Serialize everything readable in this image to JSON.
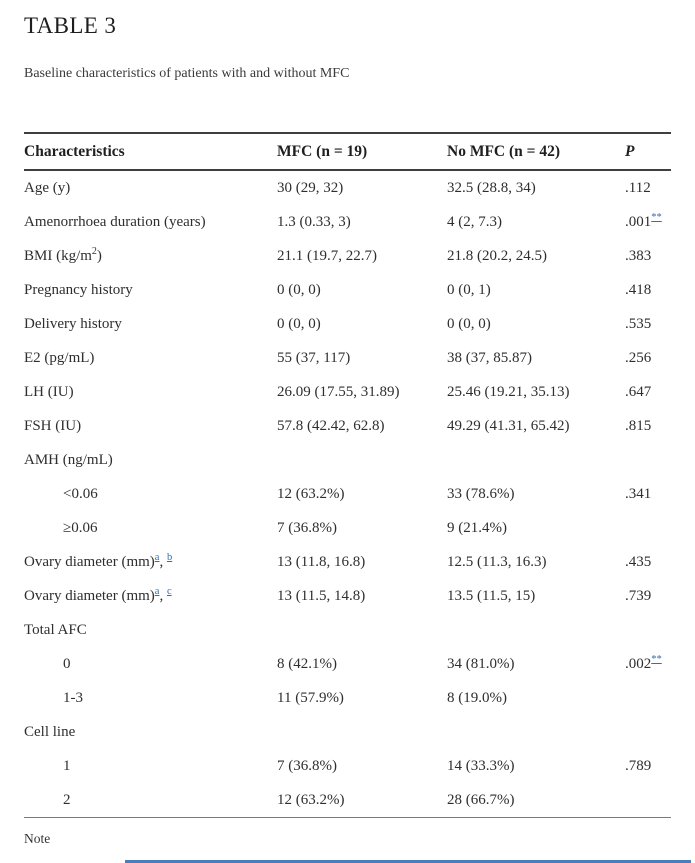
{
  "page": {
    "title": "TABLE 3",
    "caption": "Baseline characteristics of patients with and without MFC",
    "note_label": "Note"
  },
  "colors": {
    "link_blue": "#2f6eb2",
    "divider_blue": "#4a7ebb"
  },
  "table": {
    "columns": [
      "Characteristics",
      "MFC (n = 19)",
      "No MFC (n = 42)",
      "P"
    ],
    "rows": [
      {
        "label": "Age (y)",
        "mfc": "30 (29, 32)",
        "no_mfc": "32.5 (28.8, 34)",
        "p": ".112"
      },
      {
        "label": "Amenorrhoea duration (years)",
        "mfc": "1.3 (0.33, 3)",
        "no_mfc": "4 (2, 7.3)",
        "p": ".001",
        "p_sup": "**"
      },
      {
        "label": "BMI (kg/m",
        "label_sup_plain": "2",
        "label_end": ")",
        "mfc": "21.1 (19.7, 22.7)",
        "no_mfc": "21.8 (20.2, 24.5)",
        "p": ".383"
      },
      {
        "label": "Pregnancy history",
        "mfc": "0 (0, 0)",
        "no_mfc": "0 (0, 1)",
        "p": ".418"
      },
      {
        "label": "Delivery history",
        "mfc": "0 (0, 0)",
        "no_mfc": "0 (0, 0)",
        "p": ".535"
      },
      {
        "label": "E2 (pg/mL)",
        "mfc": "55 (37, 117)",
        "no_mfc": "38 (37, 85.87)",
        "p": ".256"
      },
      {
        "label": "LH (IU)",
        "mfc": "26.09 (17.55, 31.89)",
        "no_mfc": "25.46 (19.21, 35.13)",
        "p": ".647"
      },
      {
        "label": "FSH (IU)",
        "mfc": "57.8 (42.42, 62.8)",
        "no_mfc": "49.29 (41.31, 65.42)",
        "p": ".815"
      },
      {
        "label": "AMH (ng/mL)"
      },
      {
        "label": "<0.06",
        "indent": true,
        "mfc": "12 (63.2%)",
        "no_mfc": "33 (78.6%)",
        "p": ".341"
      },
      {
        "label": "≥0.06",
        "indent": true,
        "mfc": "7 (36.8%)",
        "no_mfc": "9 (21.4%)"
      },
      {
        "label": "Ovary diameter (mm)",
        "label_sup_links": [
          "a",
          "b"
        ],
        "mfc": "13 (11.8, 16.8)",
        "no_mfc": "12.5 (11.3, 16.3)",
        "p": ".435"
      },
      {
        "label": "Ovary diameter (mm)",
        "label_sup_links": [
          "a",
          "c"
        ],
        "mfc": "13 (11.5, 14.8)",
        "no_mfc": "13.5 (11.5, 15)",
        "p": ".739"
      },
      {
        "label": "Total AFC"
      },
      {
        "label": "0",
        "indent": true,
        "mfc": "8 (42.1%)",
        "no_mfc": "34 (81.0%)",
        "p": ".002",
        "p_sup": "**"
      },
      {
        "label": "1-3",
        "indent": true,
        "mfc": "11 (57.9%)",
        "no_mfc": "8 (19.0%)"
      },
      {
        "label": "Cell line"
      },
      {
        "label": "1",
        "indent": true,
        "mfc": "7 (36.8%)",
        "no_mfc": "14 (33.3%)",
        "p": ".789"
      },
      {
        "label": "2",
        "indent": true,
        "mfc": "12 (63.2%)",
        "no_mfc": "28 (66.7%)"
      }
    ]
  }
}
